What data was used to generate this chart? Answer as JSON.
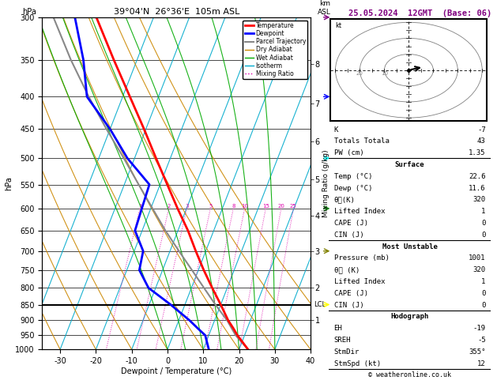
{
  "title_left": "39°04'N  26°36'E  105m ASL",
  "title_date": "25.05.2024  12GMT  (Base: 06)",
  "xlabel": "Dewpoint / Temperature (°C)",
  "ylabel_left": "hPa",
  "pressure_levels": [
    300,
    350,
    400,
    450,
    500,
    550,
    600,
    650,
    700,
    750,
    800,
    850,
    900,
    950,
    1000
  ],
  "xlim": [
    -35,
    40
  ],
  "pmin": 300,
  "pmax": 1000,
  "temp_profile": {
    "pressure": [
      1001,
      950,
      925,
      900,
      850,
      800,
      750,
      700,
      650,
      600,
      550,
      500,
      450,
      400,
      350,
      300
    ],
    "temp": [
      22.6,
      18.0,
      16.0,
      13.8,
      10.0,
      5.8,
      1.5,
      -2.8,
      -7.2,
      -12.5,
      -18.0,
      -24.0,
      -30.5,
      -38.0,
      -46.5,
      -56.0
    ]
  },
  "dewpoint_profile": {
    "pressure": [
      1001,
      950,
      925,
      900,
      850,
      800,
      750,
      700,
      650,
      600,
      550,
      500,
      450,
      400,
      350,
      300
    ],
    "dewp": [
      11.6,
      9.0,
      6.0,
      3.0,
      -4.0,
      -12.0,
      -16.5,
      -17.5,
      -22.0,
      -22.5,
      -23.0,
      -32.0,
      -40.0,
      -50.0,
      -55.0,
      -62.0
    ]
  },
  "parcel_profile": {
    "pressure": [
      1001,
      950,
      900,
      850,
      800,
      750,
      700,
      650,
      600,
      550,
      500,
      450,
      400,
      350,
      300
    ],
    "temp": [
      22.6,
      17.5,
      13.5,
      8.5,
      3.5,
      -1.8,
      -7.5,
      -13.5,
      -19.5,
      -26.0,
      -33.0,
      -41.0,
      -49.5,
      -58.5,
      -68.0
    ]
  },
  "skew_factor": 30,
  "isotherms": [
    -40,
    -30,
    -20,
    -10,
    0,
    10,
    20,
    30,
    40
  ],
  "dry_adiabats_base": [
    -40,
    -30,
    -20,
    -10,
    0,
    10,
    20,
    30,
    40,
    50
  ],
  "wet_adiabats_base": [
    0,
    5,
    10,
    15,
    20,
    25,
    30
  ],
  "mixing_ratios": [
    1,
    2,
    3,
    5,
    8,
    10,
    15,
    20,
    25
  ],
  "mixing_ratio_labels": [
    "1",
    "2",
    "3",
    "5",
    "8",
    "10",
    "15",
    "20",
    "25"
  ],
  "km_labels": [
    1,
    2,
    3,
    4,
    5,
    6,
    7,
    8
  ],
  "km_pressures": [
    900,
    800,
    700,
    615,
    540,
    470,
    410,
    355
  ],
  "lcl_pressure": 850,
  "colors": {
    "temp": "#ff0000",
    "dewp": "#0000ff",
    "parcel": "#888888",
    "dry_adiabat": "#cc8800",
    "wet_adiabat": "#00aa00",
    "isotherm": "#00aacc",
    "mixing_ratio": "#dd00aa",
    "background": "#ffffff",
    "grid": "#000000"
  },
  "info_panel": {
    "K": "-7",
    "Totals Totala": "43",
    "PW (cm)": "1.35",
    "Surface_Temp": "22.6",
    "Surface_Dewp": "11.6",
    "Surface_theta_e": "320",
    "Surface_LI": "1",
    "Surface_CAPE": "0",
    "Surface_CIN": "0",
    "MU_Pressure": "1001",
    "MU_theta_e": "320",
    "MU_LI": "1",
    "MU_CAPE": "0",
    "MU_CIN": "0",
    "Hodo_EH": "-19",
    "Hodo_SREH": "-5",
    "Hodo_StmDir": "355°",
    "Hodo_StmSpd": "12"
  },
  "legend_labels": [
    "Temperature",
    "Dewpoint",
    "Parcel Trajectory",
    "Dry Adiabat",
    "Wet Adiabat",
    "Isotherm",
    "Mixing Ratio"
  ]
}
